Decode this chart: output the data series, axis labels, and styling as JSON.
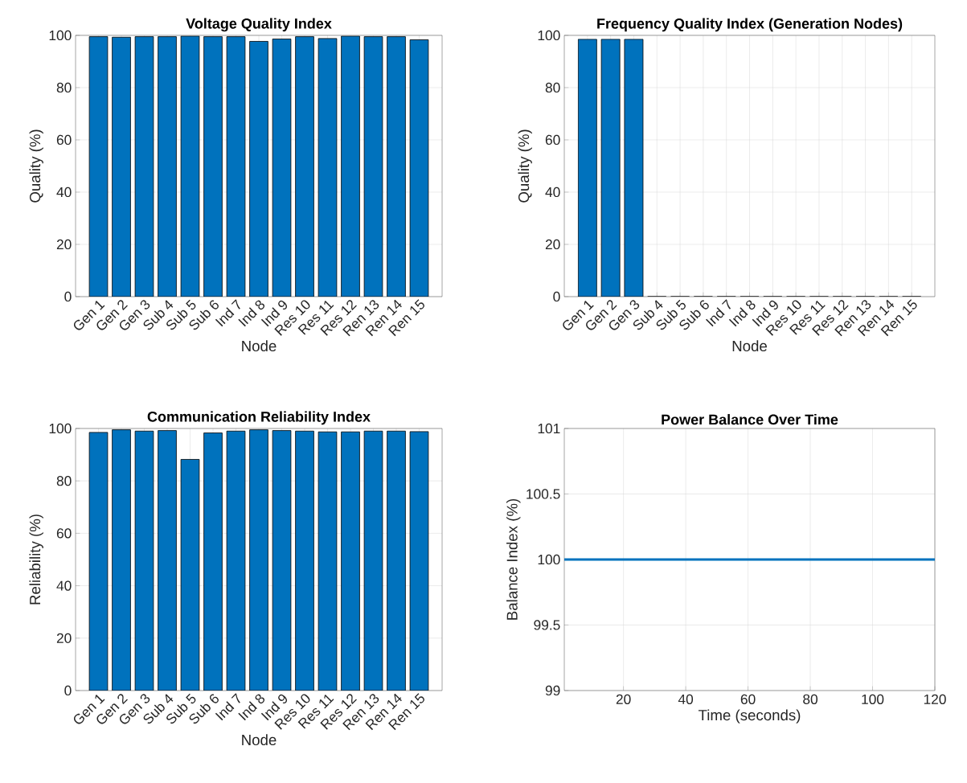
{
  "chart_data": [
    {
      "type": "bar",
      "title": "Voltage Quality Index",
      "xlabel": "Node",
      "ylabel": "Quality (%)",
      "categories": [
        "Gen 1",
        "Gen 2",
        "Gen 3",
        "Sub 4",
        "Sub 5",
        "Sub 6",
        "Ind 7",
        "Ind 8",
        "Ind 9",
        "Res 10",
        "Res 11",
        "Res 12",
        "Ren 13",
        "Ren 14",
        "Ren 15"
      ],
      "values": [
        99.5,
        99.3,
        99.5,
        99.5,
        99.7,
        99.5,
        99.5,
        97.7,
        98.6,
        99.5,
        98.8,
        99.7,
        99.5,
        99.5,
        98.3
      ],
      "color": "#0072bd",
      "ylim": [
        0,
        100
      ],
      "yticks": [
        0,
        20,
        40,
        60,
        80,
        100
      ],
      "grid": true
    },
    {
      "type": "bar",
      "title": "Frequency Quality Index (Generation Nodes)",
      "xlabel": "Node",
      "ylabel": "Quality (%)",
      "categories": [
        "Gen 1",
        "Gen 2",
        "Gen 3",
        "Sub 4",
        "Sub 5",
        "Sub 6",
        "Ind 7",
        "Ind 8",
        "Ind 9",
        "Res 10",
        "Res 11",
        "Res 12",
        "Ren 13",
        "Ren 14",
        "Ren 15"
      ],
      "values": [
        98.5,
        98.5,
        98.5,
        0,
        0,
        0,
        0,
        0,
        0,
        0,
        0,
        0,
        0,
        0,
        0
      ],
      "color": "#0072bd",
      "ylim": [
        0,
        100
      ],
      "yticks": [
        0,
        20,
        40,
        60,
        80,
        100
      ],
      "grid": true
    },
    {
      "type": "bar",
      "title": "Communication Reliability Index",
      "xlabel": "Node",
      "ylabel": "Reliability (%)",
      "categories": [
        "Gen 1",
        "Gen 2",
        "Gen 3",
        "Sub 4",
        "Sub 5",
        "Sub 6",
        "Ind 7",
        "Ind 8",
        "Ind 9",
        "Res 10",
        "Res 11",
        "Res 12",
        "Ren 13",
        "Ren 14",
        "Ren 15"
      ],
      "values": [
        98.5,
        99.5,
        99.0,
        99.2,
        88.2,
        98.3,
        99.0,
        99.5,
        99.2,
        99.0,
        98.7,
        98.7,
        99.0,
        99.0,
        98.8
      ],
      "color": "#0072bd",
      "ylim": [
        0,
        100
      ],
      "yticks": [
        0,
        20,
        40,
        60,
        80,
        100
      ],
      "grid": true
    },
    {
      "type": "line",
      "title": "Power Balance Over Time",
      "xlabel": "Time (seconds)",
      "ylabel": "Balance Index (%)",
      "x": [
        1,
        120
      ],
      "values": [
        100,
        100
      ],
      "color": "#0072bd",
      "xlim": [
        1,
        120
      ],
      "xticks": [
        20,
        40,
        60,
        80,
        100,
        120
      ],
      "ylim": [
        99,
        101
      ],
      "yticks": [
        99,
        99.5,
        100,
        100.5,
        101
      ],
      "grid": true
    }
  ]
}
